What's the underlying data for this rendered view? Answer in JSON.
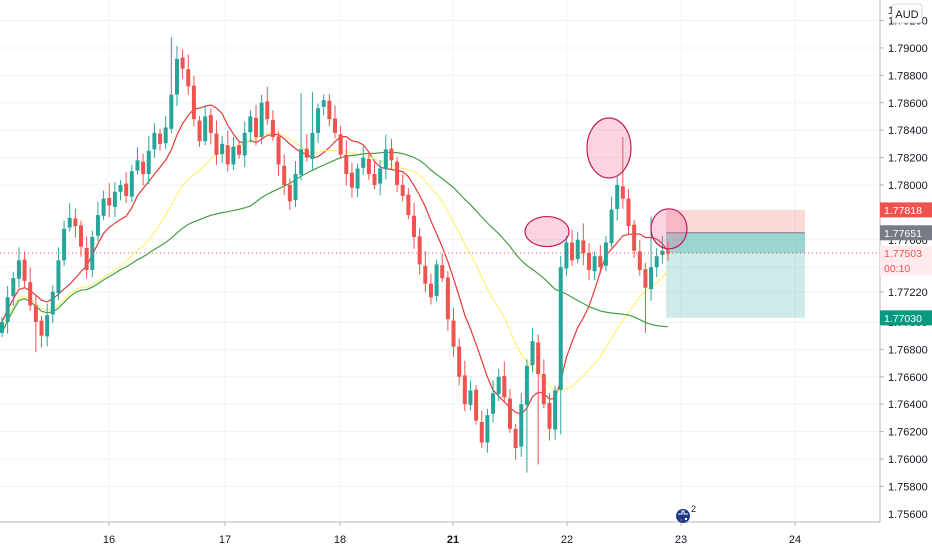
{
  "chart_data": {
    "type": "candlestick",
    "currency_badge": "AUD",
    "y_ticks": [
      "1.79200",
      "1.79000",
      "1.78800",
      "1.78600",
      "1.78400",
      "1.78200",
      "1.78000",
      "1.77600",
      "1.77400",
      "1.77220",
      "1.77000",
      "1.76800",
      "1.76600",
      "1.76400",
      "1.76200",
      "1.76000",
      "1.75800"
    ],
    "y_tick_values": [
      1.792,
      1.79,
      1.788,
      1.786,
      1.784,
      1.782,
      1.78,
      1.776,
      1.774,
      1.7722,
      1.77,
      1.768,
      1.766,
      1.764,
      1.762,
      1.76,
      1.758
    ],
    "top_partial_tick": "1",
    "bottom_partial_tick": "1.75600",
    "x_ticks": [
      {
        "label": "16",
        "t": 109,
        "bold": false
      },
      {
        "label": "17",
        "t": 225,
        "bold": false
      },
      {
        "label": "18",
        "t": 340,
        "bold": false
      },
      {
        "label": "21",
        "t": 453,
        "bold": true
      },
      {
        "label": "22",
        "t": 567,
        "bold": false
      },
      {
        "label": "23",
        "t": 681,
        "bold": false
      },
      {
        "label": "24",
        "t": 795,
        "bold": false
      }
    ],
    "ylim": [
      1.7554,
      1.7935
    ],
    "price_tags": [
      {
        "label": "1.77818",
        "value": 1.77818,
        "color": "#ef5350",
        "text_color": "#ffffff"
      },
      {
        "label": "1.77651",
        "value": 1.77651,
        "color": "#787b86",
        "text_color": "#ffffff"
      },
      {
        "label": "1.77503",
        "value": 1.77503,
        "color": "#ffebee",
        "text_color": "#ef5350"
      },
      {
        "label": "00:10",
        "value": 1.77395,
        "color": "#ffebee",
        "text_color": "#ef5350"
      },
      {
        "label": "1.77030",
        "value": 1.7703,
        "color": "#089981",
        "text_color": "#ffffff"
      }
    ],
    "position": {
      "entry": 1.77651,
      "stop": 1.77818,
      "target": 1.7703,
      "t_start": 666,
      "t_end": 805
    },
    "current_price": 1.77503,
    "colors": {
      "up": "#26a69a",
      "down": "#ef5350",
      "ma_fast": "#e53935",
      "ma_mid": "#fff176",
      "ma_slow": "#43a047"
    },
    "ellipses": [
      {
        "t": 547,
        "y": 1.7766,
        "rx": 22,
        "ry": 15
      },
      {
        "t": 609,
        "y": 1.7827,
        "rx": 22,
        "ry": 30
      },
      {
        "t": 669,
        "y": 1.7768,
        "rx": 18,
        "ry": 20
      }
    ],
    "closes": [
      1.77,
      1.7718,
      1.7732,
      1.7745,
      1.773,
      1.7712,
      1.77,
      1.769,
      1.7705,
      1.7722,
      1.7745,
      1.7768,
      1.7776,
      1.777,
      1.7755,
      1.7738,
      1.7762,
      1.7778,
      1.779,
      1.7785,
      1.7795,
      1.78,
      1.7792,
      1.781,
      1.7818,
      1.7808,
      1.7825,
      1.7838,
      1.783,
      1.7842,
      1.7866,
      1.7892,
      1.7885,
      1.7872,
      1.7848,
      1.7832,
      1.785,
      1.7838,
      1.7822,
      1.783,
      1.7815,
      1.7828,
      1.7822,
      1.7838,
      1.785,
      1.7835,
      1.786,
      1.7848,
      1.7835,
      1.7815,
      1.78,
      1.7788,
      1.7808,
      1.7826,
      1.782,
      1.7838,
      1.7856,
      1.7862,
      1.7848,
      1.7838,
      1.7822,
      1.7808,
      1.7798,
      1.7812,
      1.782,
      1.7808,
      1.78,
      1.7812,
      1.7826,
      1.7818,
      1.78,
      1.7792,
      1.7778,
      1.7762,
      1.7742,
      1.7728,
      1.7718,
      1.7742,
      1.7732,
      1.7702,
      1.7682,
      1.766,
      1.764,
      1.765,
      1.7628,
      1.7612,
      1.7632,
      1.7648,
      1.766,
      1.7645,
      1.7622,
      1.7608,
      1.764,
      1.7668,
      1.7686,
      1.7662,
      1.764,
      1.7622,
      1.765,
      1.774,
      1.7758,
      1.7745,
      1.776,
      1.775,
      1.7738,
      1.7748,
      1.774,
      1.7758,
      1.7782,
      1.78,
      1.779,
      1.777,
      1.7752,
      1.7738,
      1.7725,
      1.774,
      1.7748,
      1.7752,
      1.775
    ],
    "highs": {
      "30": 1.7908,
      "53": 1.7867,
      "55": 1.7868,
      "57": 1.7866,
      "103": 1.7772,
      "110": 1.7835,
      "115": 1.7777,
      "119": 1.7767
    },
    "lows": {
      "6": 1.7678,
      "85": 1.7608,
      "93": 1.759,
      "95": 1.7596,
      "99": 1.7618,
      "114": 1.7692
    }
  }
}
